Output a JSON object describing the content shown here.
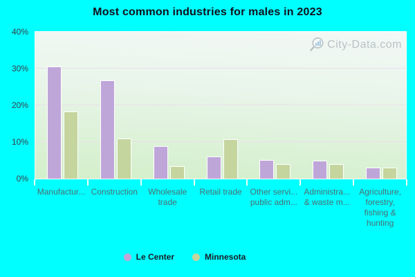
{
  "title": "Most common industries for males in 2023",
  "watermark": "City-Data.com",
  "colors": {
    "background": "#00FFFF",
    "le_center": "#BFA6D9",
    "minnesota": "#C4D59E",
    "bar_border": "#FFFFFF",
    "gridline": "#E9E0EA",
    "watermark_bars": "#8FB8D8"
  },
  "y_axis": {
    "ticks": [
      {
        "label": "0%",
        "value": 0
      },
      {
        "label": "10%",
        "value": 10
      },
      {
        "label": "20%",
        "value": 20
      },
      {
        "label": "30%",
        "value": 30
      },
      {
        "label": "40%",
        "value": 40
      }
    ],
    "max": 40
  },
  "chart_data": {
    "type": "bar",
    "title": "Most common industries for males in 2023",
    "categories": [
      "Manufactur...",
      "Construction",
      "Wholesale\ntrade",
      "Retail trade",
      "Other servi...\npublic adm...",
      "Administra...\n& waste m...",
      "Agriculture,\nforestry,\nfishing &\nhunting"
    ],
    "series": [
      {
        "name": "Le Center",
        "color": "#BFA6D9",
        "values": [
          30.4,
          26.7,
          8.6,
          5.8,
          5.0,
          4.7,
          2.9
        ]
      },
      {
        "name": "Minnesota",
        "color": "#C4D59E",
        "values": [
          18.2,
          10.8,
          3.2,
          10.5,
          3.8,
          3.7,
          2.8
        ]
      }
    ],
    "xlabel": "",
    "ylabel": "",
    "ylim": [
      0,
      40
    ],
    "grid": true,
    "legend_position": "bottom"
  },
  "legend": {
    "items": [
      {
        "label": "Le Center",
        "color": "#BFA6D9"
      },
      {
        "label": "Minnesota",
        "color": "#C4D59E"
      }
    ]
  }
}
